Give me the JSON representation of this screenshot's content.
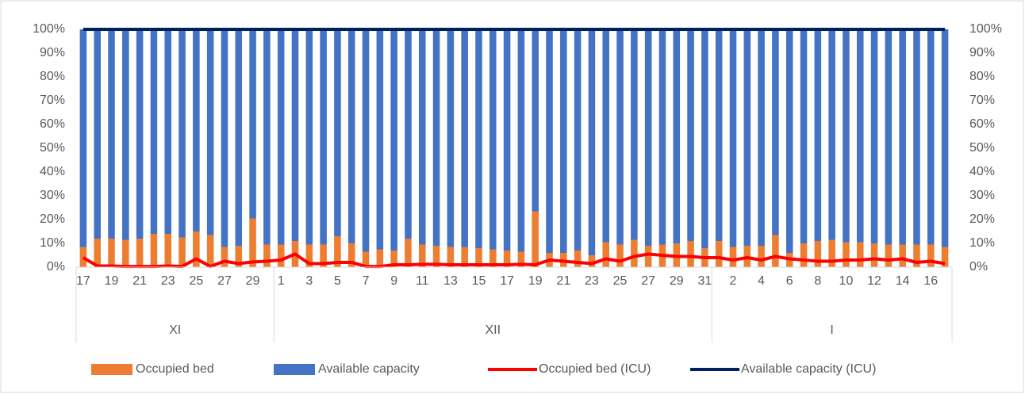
{
  "chart_data": {
    "type": "bar",
    "stacked": true,
    "categories": [
      "17",
      null,
      "19",
      null,
      "21",
      null,
      "23",
      null,
      "25",
      null,
      "27",
      null,
      "29",
      null,
      "1",
      null,
      "3",
      null,
      "5",
      null,
      "7",
      null,
      "9",
      null,
      "11",
      null,
      "13",
      null,
      "15",
      null,
      "17",
      null,
      "19",
      null,
      "21",
      null,
      "23",
      null,
      "25",
      null,
      "27",
      null,
      "29",
      null,
      "31",
      null,
      "2",
      null,
      "4",
      null,
      "6",
      null,
      "8",
      null,
      "10",
      null,
      "12",
      null,
      "14",
      null,
      "16",
      null
    ],
    "x_groups": [
      {
        "label": "XI",
        "categories": 14
      },
      {
        "label": "XII",
        "categories": 31
      },
      {
        "label": "I",
        "categories": 17
      }
    ],
    "series": [
      {
        "name": "Occupied bed",
        "kind": "bar",
        "color": "#ed7d31",
        "values": [
          8.5,
          12,
          12,
          11.5,
          12,
          14,
          14,
          12.5,
          15,
          13.5,
          8.5,
          9,
          20.5,
          9.5,
          9.5,
          11,
          9.5,
          9.5,
          13,
          10,
          6.5,
          7.5,
          7,
          12,
          9.5,
          9,
          8.5,
          8.5,
          8,
          7.5,
          7,
          6.5,
          23.5,
          6,
          6,
          7,
          5,
          10.5,
          9.5,
          11.5,
          9,
          9.5,
          10,
          11,
          8,
          11,
          8.5,
          9,
          9,
          13.5,
          6,
          10,
          11,
          11.5,
          10.5,
          10.5,
          10,
          9.5,
          9.5,
          9.5,
          9.5,
          8.5
        ]
      },
      {
        "name": "Available capacity",
        "kind": "bar",
        "color": "#4472c4",
        "values": [
          91.5,
          88,
          88,
          88.5,
          88,
          86,
          86,
          87.5,
          85,
          86.5,
          91.5,
          91,
          79.5,
          90.5,
          90.5,
          89,
          90.5,
          90.5,
          87,
          90,
          93.5,
          92.5,
          93,
          88,
          90.5,
          91,
          91.5,
          91.5,
          92,
          92.5,
          93,
          93.5,
          76.5,
          94,
          94,
          93,
          95,
          89.5,
          90.5,
          88.5,
          91,
          90.5,
          90,
          89,
          92,
          89,
          91.5,
          91,
          91,
          86.5,
          94,
          90,
          89,
          88.5,
          89.5,
          89.5,
          90,
          90.5,
          90.5,
          90.5,
          90.5,
          91.5
        ]
      },
      {
        "name": "Occupied bed (ICU)",
        "kind": "line",
        "axis": "y2",
        "color": "#ff0000",
        "values": [
          4,
          0.5,
          0.5,
          0.3,
          0.3,
          0.3,
          0.5,
          0.3,
          3.5,
          0.3,
          2.5,
          1.5,
          2.2,
          2.5,
          3,
          5.5,
          1.5,
          1.5,
          2,
          2,
          0.3,
          0.3,
          1,
          1,
          1.2,
          1.2,
          1,
          1,
          1,
          1,
          1,
          1.2,
          1,
          3,
          2.5,
          2,
          1.5,
          3.5,
          2.5,
          4.5,
          5.5,
          5,
          4.5,
          4.5,
          4,
          4,
          3,
          4,
          3,
          4.5,
          3.5,
          3,
          2.5,
          2.5,
          3,
          3,
          3.5,
          3,
          3.5,
          2,
          2.5,
          1.5
        ]
      },
      {
        "name": "Available capacity (ICU)",
        "kind": "line",
        "axis": "y2",
        "color": "#002060",
        "values": [
          96,
          99.5,
          99.5,
          99.7,
          99.7,
          99.7,
          99.5,
          99.7,
          96.5,
          99.7,
          97.5,
          98.5,
          97.8,
          97.5,
          97,
          94.5,
          98.5,
          98.5,
          98,
          98,
          99.7,
          99.7,
          99,
          99,
          98.8,
          98.8,
          99,
          99,
          99,
          99,
          99,
          98.8,
          99,
          97,
          97.5,
          98,
          98.5,
          96.5,
          97.5,
          95.5,
          94.5,
          95,
          95.5,
          95.5,
          96,
          96,
          97,
          96,
          97,
          95.5,
          96.5,
          97,
          97.5,
          97.5,
          97,
          97,
          96.5,
          97,
          96.5,
          98,
          97.5,
          98.5
        ]
      }
    ],
    "ylim": [
      0,
      100
    ],
    "yticks": [
      {
        "value": 0,
        "label": "0%"
      },
      {
        "value": 10,
        "label": "10%"
      },
      {
        "value": 20,
        "label": "20%"
      },
      {
        "value": 30,
        "label": "30%"
      },
      {
        "value": 40,
        "label": "40%"
      },
      {
        "value": 50,
        "label": "50%"
      },
      {
        "value": 60,
        "label": "60%"
      },
      {
        "value": 70,
        "label": "70%"
      },
      {
        "value": 80,
        "label": "80%"
      },
      {
        "value": 90,
        "label": "90%"
      },
      {
        "value": 100,
        "label": "100%"
      }
    ],
    "y2lim": [
      0,
      100
    ],
    "y2ticks": [
      {
        "value": 0,
        "label": "0%"
      },
      {
        "value": 10,
        "label": "10%"
      },
      {
        "value": 20,
        "label": "20%"
      },
      {
        "value": 30,
        "label": "30%"
      },
      {
        "value": 40,
        "label": "40%"
      },
      {
        "value": 50,
        "label": "50%"
      },
      {
        "value": 60,
        "label": "60%"
      },
      {
        "value": 70,
        "label": "70%"
      },
      {
        "value": 80,
        "label": "80%"
      },
      {
        "value": 90,
        "label": "90%"
      },
      {
        "value": 100,
        "label": "100%"
      }
    ],
    "grid": false,
    "legend": "bottom"
  }
}
